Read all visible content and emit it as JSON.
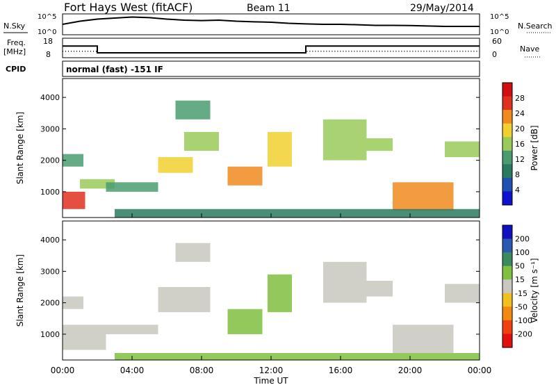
{
  "header": {
    "site": "Fort Hays West (fitACF)",
    "beam": "Beam 11",
    "date": "29/May/2014"
  },
  "cpid": {
    "label": "CPID",
    "text": "normal (fast) -151 IF"
  },
  "chart_data": [
    {
      "type": "line",
      "name": "noise-panel",
      "left_label": "N.Sky",
      "right_label": "N.Search",
      "left_ticks": [
        "10^5",
        "10^0"
      ],
      "right_ticks": [
        "10^5",
        "10^0"
      ],
      "scale": "log",
      "description_series": [
        {
          "x": 0,
          "y": 0.5
        },
        {
          "x": 1,
          "y": 0.35
        },
        {
          "x": 2,
          "y": 0.25
        },
        {
          "x": 3,
          "y": 0.2
        },
        {
          "x": 4,
          "y": 0.15
        },
        {
          "x": 5,
          "y": 0.18
        },
        {
          "x": 6,
          "y": 0.25
        },
        {
          "x": 7,
          "y": 0.3
        },
        {
          "x": 8,
          "y": 0.32
        },
        {
          "x": 9,
          "y": 0.3
        },
        {
          "x": 10,
          "y": 0.35
        },
        {
          "x": 11,
          "y": 0.38
        },
        {
          "x": 12,
          "y": 0.4
        },
        {
          "x": 13,
          "y": 0.45
        },
        {
          "x": 14,
          "y": 0.48
        },
        {
          "x": 15,
          "y": 0.5
        },
        {
          "x": 16,
          "y": 0.5
        },
        {
          "x": 17,
          "y": 0.52
        },
        {
          "x": 18,
          "y": 0.55
        },
        {
          "x": 19,
          "y": 0.55
        },
        {
          "x": 20,
          "y": 0.56
        },
        {
          "x": 21,
          "y": 0.58
        },
        {
          "x": 22,
          "y": 0.6
        },
        {
          "x": 23,
          "y": 0.6
        },
        {
          "x": 24,
          "y": 0.6
        }
      ]
    },
    {
      "type": "line",
      "name": "freq-panel",
      "left_label_lines": [
        "Freq.",
        "[MHz]"
      ],
      "right_label": "Nave",
      "left_ticks": [
        18,
        8
      ],
      "right_ticks": [
        60,
        0
      ],
      "frequency_steps": [
        {
          "start": 0,
          "end": 2.0,
          "value": 14
        },
        {
          "start": 2.0,
          "end": 14.0,
          "value": 10.5
        },
        {
          "start": 14.0,
          "end": 24,
          "value": 14
        }
      ],
      "nave_steps": [
        {
          "start": 0,
          "end": 2.0,
          "value": 20
        },
        {
          "start": 2.0,
          "end": 14.0,
          "value": 15
        },
        {
          "start": 14.0,
          "end": 24,
          "value": 20
        }
      ]
    },
    {
      "type": "heatmap",
      "name": "power-panel",
      "ylabel": "Slant Range [km]",
      "yticks": [
        1000,
        2000,
        3000,
        4000
      ],
      "ylim": [
        180,
        4600
      ],
      "xlim": [
        0,
        24
      ],
      "colorbar": {
        "label": "Power [dB]",
        "ticks": [
          4,
          8,
          12,
          16,
          20,
          24,
          28
        ],
        "colors": [
          "#1010d0",
          "#2050b0",
          "#2a7a60",
          "#4a9c70",
          "#9acb5a",
          "#f0d030",
          "#f08a20",
          "#e03020",
          "#d01010"
        ]
      },
      "bands": [
        {
          "x0": 0,
          "x1": 1.2,
          "y0": 1800,
          "y1": 2200,
          "level": 0.35
        },
        {
          "x0": 0,
          "x1": 1.3,
          "y0": 450,
          "y1": 1000,
          "level": 0.85
        },
        {
          "x0": 1.0,
          "x1": 3.0,
          "y0": 1100,
          "y1": 1400,
          "level": 0.55
        },
        {
          "x0": 2.5,
          "x1": 5.5,
          "y0": 1000,
          "y1": 1300,
          "level": 0.4
        },
        {
          "x0": 5.5,
          "x1": 7.5,
          "y0": 1600,
          "y1": 2100,
          "level": 0.6
        },
        {
          "x0": 7.0,
          "x1": 9.0,
          "y0": 2300,
          "y1": 2900,
          "level": 0.5
        },
        {
          "x0": 6.5,
          "x1": 8.5,
          "y0": 3300,
          "y1": 3900,
          "level": 0.4
        },
        {
          "x0": 9.5,
          "x1": 11.5,
          "y0": 1200,
          "y1": 1800,
          "level": 0.7
        },
        {
          "x0": 11.8,
          "x1": 13.2,
          "y0": 1800,
          "y1": 2900,
          "level": 0.6
        },
        {
          "x0": 15.0,
          "x1": 17.5,
          "y0": 2000,
          "y1": 3300,
          "level": 0.55
        },
        {
          "x0": 17.5,
          "x1": 19.0,
          "y0": 2300,
          "y1": 2700,
          "level": 0.45
        },
        {
          "x0": 19.0,
          "x1": 22.5,
          "y0": 400,
          "y1": 1300,
          "level": 0.8
        },
        {
          "x0": 22.0,
          "x1": 24,
          "y0": 2100,
          "y1": 2600,
          "level": 0.5
        },
        {
          "x0": 3.0,
          "x1": 24,
          "y0": 180,
          "y1": 450,
          "level": 0.3
        }
      ]
    },
    {
      "type": "heatmap",
      "name": "velocity-panel",
      "ylabel": "Slant Range [km]",
      "yticks": [
        1000,
        2000,
        3000,
        4000
      ],
      "ylim": [
        180,
        4600
      ],
      "xlim": [
        0,
        24
      ],
      "xticks": [
        "00:00",
        "04:00",
        "08:00",
        "12:00",
        "16:00",
        "20:00",
        "00:00"
      ],
      "xlabel": "Time UT",
      "colorbar": {
        "label": "Velocity [m s⁻¹]",
        "ticks": [
          -200,
          -100,
          -50,
          -15,
          15,
          50,
          100,
          200
        ],
        "colors": [
          "#e01010",
          "#f04010",
          "#f08a10",
          "#f0c020",
          "#c8c8c0",
          "#80c040",
          "#3a8a60",
          "#2a5ab0",
          "#1010c0"
        ]
      },
      "bands": [
        {
          "x0": 0,
          "x1": 2.5,
          "y0": 500,
          "y1": 1300,
          "level": 0.5
        },
        {
          "x0": 0,
          "x1": 1.2,
          "y0": 1800,
          "y1": 2200,
          "level": 0.5
        },
        {
          "x0": 2.5,
          "x1": 5.5,
          "y0": 1000,
          "y1": 1300,
          "level": 0.5
        },
        {
          "x0": 5.5,
          "x1": 8.5,
          "y0": 1700,
          "y1": 2500,
          "level": 0.5
        },
        {
          "x0": 6.5,
          "x1": 8.5,
          "y0": 3300,
          "y1": 3900,
          "level": 0.5
        },
        {
          "x0": 9.5,
          "x1": 11.5,
          "y0": 1000,
          "y1": 1800,
          "level": 0.62
        },
        {
          "x0": 11.8,
          "x1": 13.2,
          "y0": 1700,
          "y1": 2900,
          "level": 0.6
        },
        {
          "x0": 15.0,
          "x1": 17.5,
          "y0": 2000,
          "y1": 3300,
          "level": 0.5
        },
        {
          "x0": 17.5,
          "x1": 19.0,
          "y0": 2200,
          "y1": 2700,
          "level": 0.5
        },
        {
          "x0": 19.0,
          "x1": 22.5,
          "y0": 400,
          "y1": 1300,
          "level": 0.5
        },
        {
          "x0": 22.0,
          "x1": 24,
          "y0": 2000,
          "y1": 2600,
          "level": 0.5
        },
        {
          "x0": 3.0,
          "x1": 24,
          "y0": 180,
          "y1": 400,
          "level": 0.6
        }
      ]
    }
  ]
}
